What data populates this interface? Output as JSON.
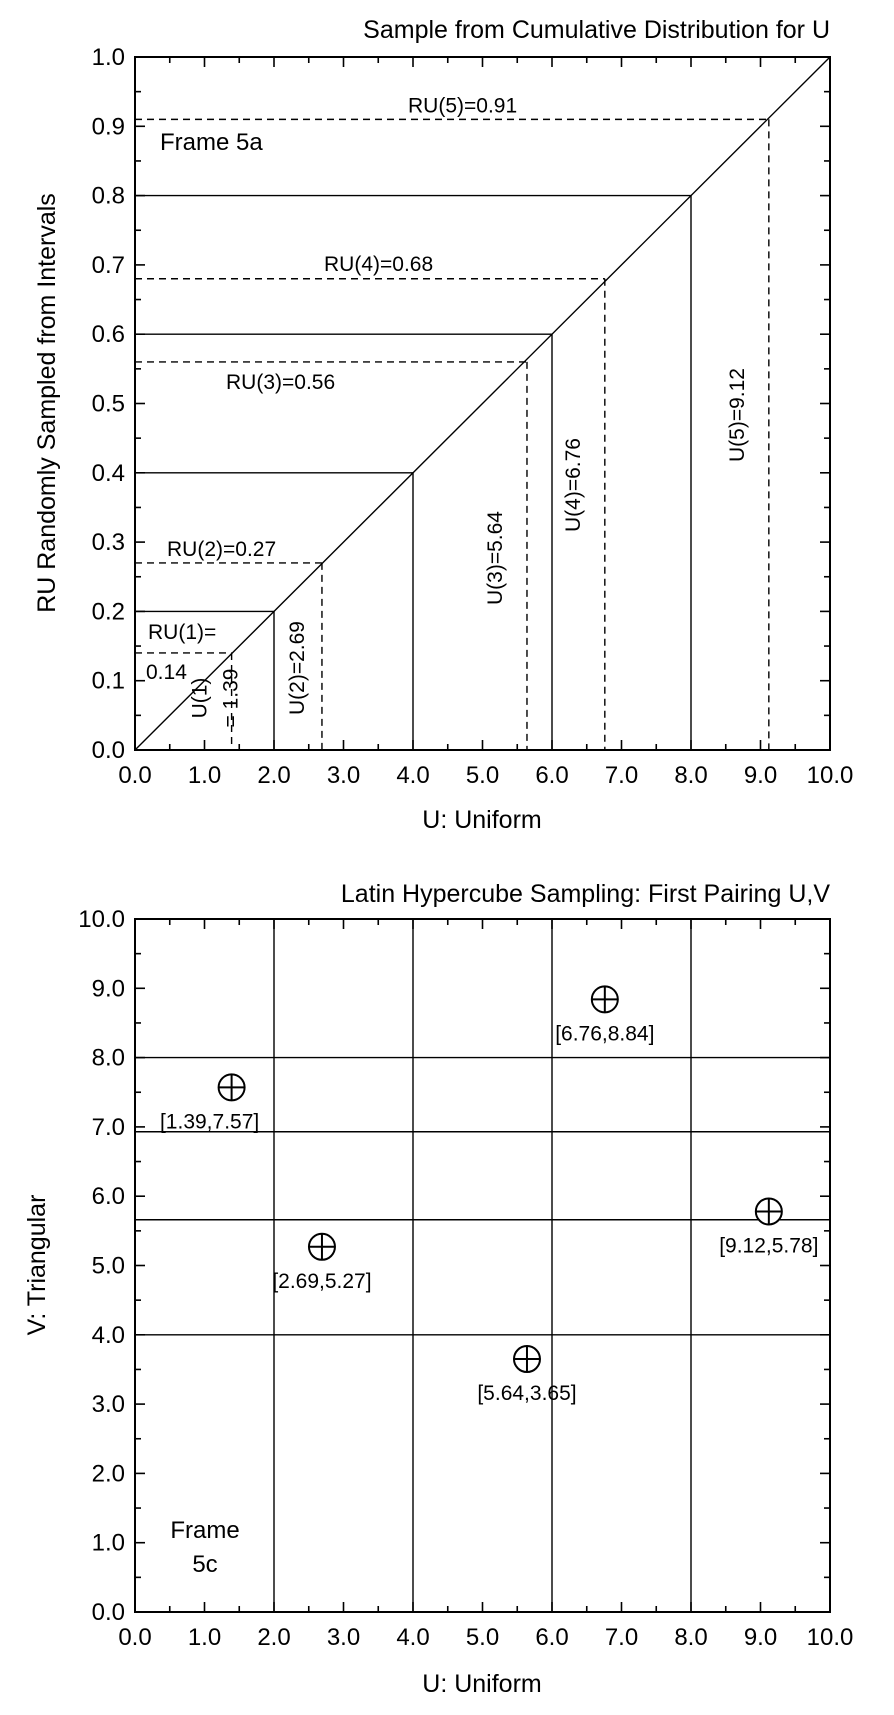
{
  "charts": [
    {
      "type": "line",
      "title": "Sample from Cumulative Distribution for U",
      "xlabel": "U: Uniform",
      "ylabel": "RU Randomly Sampled from Intervals",
      "frame_label": "Frame 5a",
      "xlim": [
        0,
        10
      ],
      "ylim": [
        0,
        1
      ],
      "xticks": [
        "0.0",
        "1.0",
        "2.0",
        "3.0",
        "4.0",
        "5.0",
        "6.0",
        "7.0",
        "8.0",
        "9.0",
        "10.0"
      ],
      "yticks": [
        "0.0",
        "0.1",
        "0.2",
        "0.3",
        "0.4",
        "0.5",
        "0.6",
        "0.7",
        "0.8",
        "0.9",
        "1.0"
      ],
      "grid": false,
      "cdf": {
        "x": [
          0,
          10
        ],
        "y": [
          0,
          1
        ]
      },
      "interval_boundaries": [
        {
          "u": 2,
          "ru": 0.2
        },
        {
          "u": 4,
          "ru": 0.4
        },
        {
          "u": 6,
          "ru": 0.6
        },
        {
          "u": 8,
          "ru": 0.8
        }
      ],
      "samples": [
        {
          "u": 1.39,
          "ru": 0.14,
          "ru_label": "RU(1)=",
          "ru_label2": "0.14",
          "u_label": "U(1)",
          "u_label2": "= 1.39"
        },
        {
          "u": 2.69,
          "ru": 0.27,
          "ru_label": "RU(2)=0.27",
          "u_label": "U(2)=2.69"
        },
        {
          "u": 5.64,
          "ru": 0.56,
          "ru_label": "RU(3)=0.56",
          "u_label": "U(3)=5.64"
        },
        {
          "u": 6.76,
          "ru": 0.68,
          "ru_label": "RU(4)=0.68",
          "u_label": "U(4)=6.76"
        },
        {
          "u": 9.12,
          "ru": 0.91,
          "ru_label": "RU(5)=0.91",
          "u_label": "U(5)=9.12"
        }
      ]
    },
    {
      "type": "scatter",
      "title": "Latin Hypercube Sampling: First Pairing U,V",
      "xlabel": "U: Uniform",
      "ylabel": "V: Triangular",
      "frame_label": "Frame",
      "frame_label2": "5c",
      "xlim": [
        0,
        10
      ],
      "ylim": [
        0,
        10
      ],
      "xticks": [
        "0.0",
        "1.0",
        "2.0",
        "3.0",
        "4.0",
        "5.0",
        "6.0",
        "7.0",
        "8.0",
        "9.0",
        "10.0"
      ],
      "yticks": [
        "0.0",
        "1.0",
        "2.0",
        "3.0",
        "4.0",
        "5.0",
        "6.0",
        "7.0",
        "8.0",
        "9.0",
        "10.0"
      ],
      "u_interval_lines": [
        2,
        4,
        6,
        8
      ],
      "v_interval_lines": [
        4.0,
        5.66,
        6.93,
        8.0
      ],
      "points": [
        {
          "u": 1.39,
          "v": 7.57,
          "label": "[1.39,7.57]"
        },
        {
          "u": 2.69,
          "v": 5.27,
          "label": "[2.69,5.27]"
        },
        {
          "u": 5.64,
          "v": 3.65,
          "label": "[5.64,3.65]"
        },
        {
          "u": 6.76,
          "v": 8.84,
          "label": "[6.76,8.84]"
        },
        {
          "u": 9.12,
          "v": 5.78,
          "label": "[9.12,5.78]"
        }
      ]
    }
  ]
}
